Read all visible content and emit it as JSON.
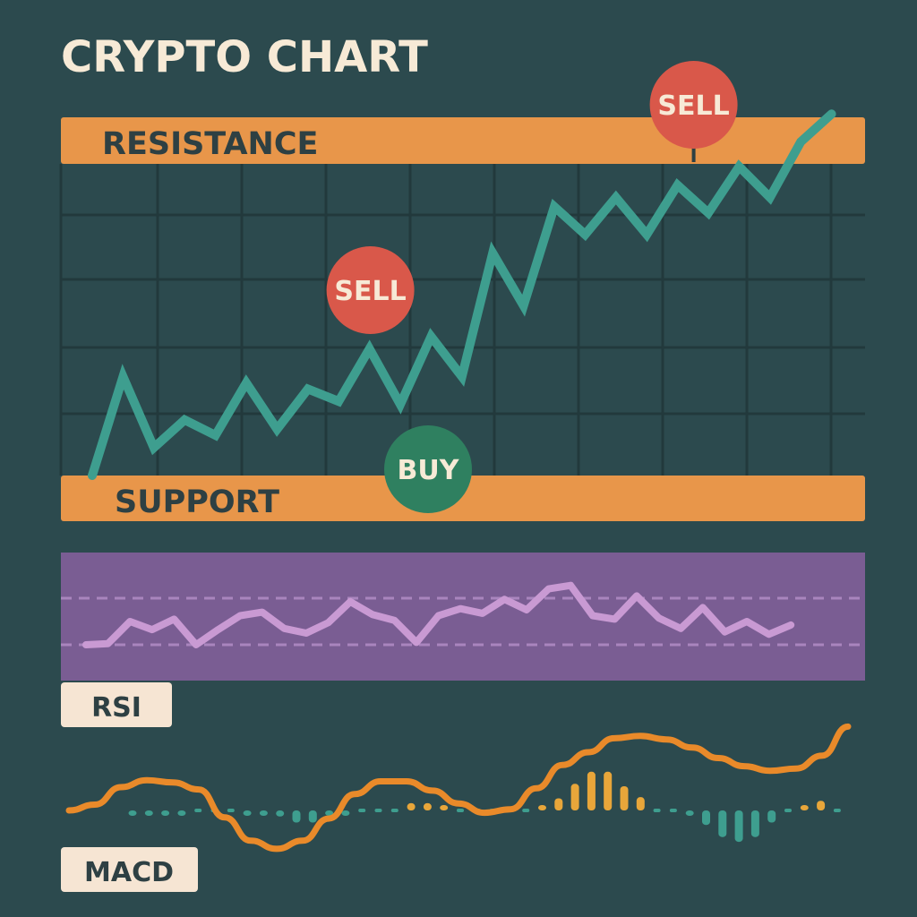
{
  "title": "CRYPTO CHART",
  "colors": {
    "background": "#2c4a4e",
    "grid": "#22393c",
    "band": "#e8964a",
    "band_text": "#2e4043",
    "price_line": "#3e9e8f",
    "sell": "#d9584a",
    "buy": "#2f8060",
    "marker_text": "#f7ead6",
    "rsi_bg": "#7a5d93",
    "rsi_line": "#c99ad3",
    "rsi_guides": "#b28cc6",
    "tag_bg": "#f6e5d3",
    "tag_text": "#2e4043",
    "macd_line": "#e98a2a",
    "hist_pos": "#e8a63a",
    "hist_neg": "#3e9e8f"
  },
  "chart_data": [
    {
      "type": "line",
      "name": "price",
      "bands": {
        "resistance_label": "RESISTANCE",
        "support_label": "SUPPORT",
        "resistance_level": 100,
        "support_level": 0
      },
      "x": [
        0,
        1,
        2,
        3,
        4,
        5,
        6,
        7,
        8,
        9,
        10,
        11,
        12,
        13,
        14,
        15,
        16,
        17,
        18,
        19,
        20,
        21,
        22,
        23,
        24
      ],
      "y": [
        0,
        32,
        9,
        18,
        13,
        30,
        15,
        28,
        24,
        41,
        23,
        45,
        32,
        72,
        55,
        87,
        78,
        90,
        78,
        94,
        85,
        100,
        90,
        108,
        117
      ],
      "signals": [
        {
          "label": "SELL",
          "kind": "sell",
          "x": 9,
          "y": 60
        },
        {
          "label": "BUY",
          "kind": "buy",
          "x": 10,
          "y": 0
        },
        {
          "label": "SELL",
          "kind": "sell",
          "x": 19,
          "y": 120
        }
      ]
    },
    {
      "type": "line",
      "name": "rsi",
      "label": "RSI",
      "guide_levels": [
        70,
        30
      ],
      "ylim": [
        0,
        100
      ],
      "y": [
        30,
        31,
        50,
        43,
        52,
        30,
        43,
        55,
        58,
        44,
        40,
        49,
        67,
        56,
        51,
        32,
        55,
        61,
        57,
        69,
        60,
        78,
        81,
        55,
        52,
        72,
        53,
        44,
        62,
        41,
        50,
        39,
        47
      ]
    },
    {
      "type": "line",
      "name": "macd",
      "label": "MACD",
      "y": [
        0,
        5,
        20,
        26,
        24,
        18,
        -6,
        -26,
        -33,
        -26,
        -7,
        14,
        25,
        25,
        17,
        6,
        -2,
        1,
        19,
        39,
        50,
        62,
        64,
        61,
        54,
        45,
        38,
        34,
        36,
        47,
        72
      ],
      "histogram": [
        -1,
        -1,
        -2,
        -1,
        0,
        0,
        0,
        -1,
        -2,
        -5,
        -10,
        -10,
        -4,
        -1,
        0,
        0,
        0,
        6,
        6,
        2,
        0,
        0,
        0,
        0,
        0,
        2,
        10,
        22,
        32,
        32,
        20,
        11,
        0,
        0,
        -2,
        -12,
        -22,
        -26,
        -22,
        -10,
        0,
        4,
        8,
        0
      ]
    }
  ]
}
